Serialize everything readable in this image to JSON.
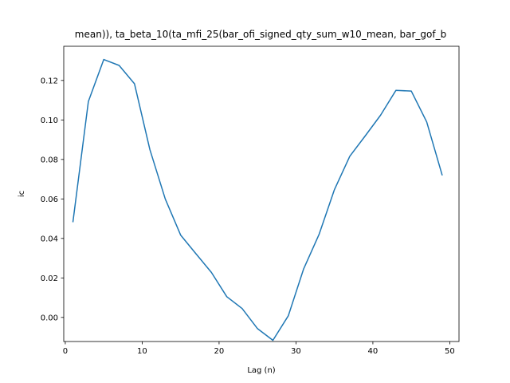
{
  "chart_data": {
    "type": "line",
    "title": "mean)), ta_beta_10(ta_mfi_25(bar_ofi_signed_qty_sum_w10_mean, bar_gof_b",
    "xlabel": "Lag (n)",
    "ylabel": "ic",
    "xlim": [
      -0.2,
      51.2
    ],
    "ylim": [
      -0.0122,
      0.1373
    ],
    "xticks": [
      0,
      10,
      20,
      30,
      40,
      50
    ],
    "yticks": [
      0.0,
      0.02,
      0.04,
      0.06,
      0.08,
      0.1,
      0.12
    ],
    "ytick_labels": [
      "0.00",
      "0.02",
      "0.04",
      "0.06",
      "0.08",
      "0.10",
      "0.12"
    ],
    "grid": false,
    "line_color": "#1f77b4",
    "series": [
      {
        "x": [
          1,
          3,
          5,
          7,
          9,
          11,
          13,
          15,
          17,
          19,
          21,
          23,
          25,
          27,
          29,
          31,
          33,
          35,
          37,
          39,
          41,
          43,
          45,
          47,
          49
        ],
        "values": [
          0.0485,
          0.1093,
          0.1306,
          0.1276,
          0.1183,
          0.085,
          0.06,
          0.0417,
          0.0322,
          0.0228,
          0.0105,
          0.0045,
          -0.0057,
          -0.0116,
          0.0008,
          0.0246,
          0.042,
          0.0647,
          0.0816,
          0.0919,
          0.1024,
          0.115,
          0.1146,
          0.099,
          0.0722
        ]
      }
    ]
  }
}
